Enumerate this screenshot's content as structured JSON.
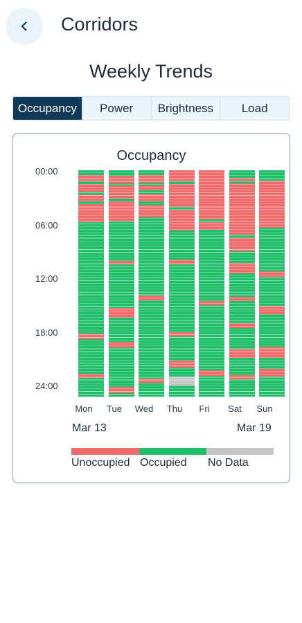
{
  "header": {
    "title": "Corridors",
    "back_icon": "chevron-left-icon"
  },
  "section": {
    "title": "Weekly Trends"
  },
  "tabs": [
    {
      "label": "Occupancy",
      "active": true
    },
    {
      "label": "Power",
      "active": false
    },
    {
      "label": "Brightness",
      "active": false
    },
    {
      "label": "Load",
      "active": false
    }
  ],
  "colors": {
    "unoccupied": "#f06a6a",
    "occupied": "#1fbf6a",
    "no_data": "#c4c4c4",
    "accent": "#123a58"
  },
  "chart_data": {
    "type": "heatmap",
    "title": "Occupancy",
    "x": [
      "Mon",
      "Tue",
      "Wed",
      "Thu",
      "Fri",
      "Sat",
      "Sun"
    ],
    "y_ticks": [
      "00:00",
      "06:00",
      "12:00",
      "18:00",
      "24:00"
    ],
    "y_range_hours": [
      0,
      24
    ],
    "start_date": "Mar 13",
    "end_date": "Mar 19",
    "legend": [
      "Unoccupied",
      "Occupied",
      "No Data"
    ],
    "categories": [
      "unoccupied",
      "occupied",
      "no_data"
    ],
    "series": [
      {
        "day": "Mon",
        "segments": [
          {
            "start": 0,
            "end": 0.5,
            "state": "occupied"
          },
          {
            "start": 0.5,
            "end": 1.2,
            "state": "unoccupied"
          },
          {
            "start": 1.2,
            "end": 1.5,
            "state": "occupied"
          },
          {
            "start": 1.5,
            "end": 2.3,
            "state": "unoccupied"
          },
          {
            "start": 2.3,
            "end": 2.6,
            "state": "occupied"
          },
          {
            "start": 2.6,
            "end": 3.3,
            "state": "unoccupied"
          },
          {
            "start": 3.3,
            "end": 3.6,
            "state": "occupied"
          },
          {
            "start": 3.6,
            "end": 5.5,
            "state": "unoccupied"
          },
          {
            "start": 5.5,
            "end": 17.3,
            "state": "occupied"
          },
          {
            "start": 17.3,
            "end": 17.9,
            "state": "unoccupied"
          },
          {
            "start": 17.9,
            "end": 21.6,
            "state": "occupied"
          },
          {
            "start": 21.6,
            "end": 22.0,
            "state": "unoccupied"
          },
          {
            "start": 22.0,
            "end": 24,
            "state": "occupied"
          }
        ]
      },
      {
        "day": "Tue",
        "segments": [
          {
            "start": 0,
            "end": 0.6,
            "state": "occupied"
          },
          {
            "start": 0.6,
            "end": 1.4,
            "state": "unoccupied"
          },
          {
            "start": 1.4,
            "end": 1.6,
            "state": "occupied"
          },
          {
            "start": 1.6,
            "end": 3.0,
            "state": "unoccupied"
          },
          {
            "start": 3.0,
            "end": 3.3,
            "state": "occupied"
          },
          {
            "start": 3.3,
            "end": 5.4,
            "state": "unoccupied"
          },
          {
            "start": 5.4,
            "end": 9.6,
            "state": "occupied"
          },
          {
            "start": 9.6,
            "end": 10.0,
            "state": "unoccupied"
          },
          {
            "start": 10.0,
            "end": 14.6,
            "state": "occupied"
          },
          {
            "start": 14.6,
            "end": 15.6,
            "state": "unoccupied"
          },
          {
            "start": 15.6,
            "end": 18.2,
            "state": "occupied"
          },
          {
            "start": 18.2,
            "end": 18.8,
            "state": "unoccupied"
          },
          {
            "start": 18.8,
            "end": 23.0,
            "state": "occupied"
          },
          {
            "start": 23.0,
            "end": 23.6,
            "state": "unoccupied"
          },
          {
            "start": 23.6,
            "end": 24,
            "state": "occupied"
          }
        ]
      },
      {
        "day": "Wed",
        "segments": [
          {
            "start": 0,
            "end": 0.5,
            "state": "occupied"
          },
          {
            "start": 0.5,
            "end": 1.3,
            "state": "unoccupied"
          },
          {
            "start": 1.3,
            "end": 1.6,
            "state": "occupied"
          },
          {
            "start": 1.6,
            "end": 2.1,
            "state": "unoccupied"
          },
          {
            "start": 2.1,
            "end": 2.5,
            "state": "occupied"
          },
          {
            "start": 2.5,
            "end": 3.3,
            "state": "unoccupied"
          },
          {
            "start": 3.3,
            "end": 3.7,
            "state": "occupied"
          },
          {
            "start": 3.7,
            "end": 5.0,
            "state": "unoccupied"
          },
          {
            "start": 5.0,
            "end": 13.3,
            "state": "occupied"
          },
          {
            "start": 13.3,
            "end": 13.8,
            "state": "unoccupied"
          },
          {
            "start": 13.8,
            "end": 22.1,
            "state": "occupied"
          },
          {
            "start": 22.1,
            "end": 22.5,
            "state": "unoccupied"
          },
          {
            "start": 22.5,
            "end": 24,
            "state": "occupied"
          }
        ]
      },
      {
        "day": "Thu",
        "segments": [
          {
            "start": 0,
            "end": 1.2,
            "state": "unoccupied"
          },
          {
            "start": 1.2,
            "end": 1.5,
            "state": "occupied"
          },
          {
            "start": 1.5,
            "end": 3.9,
            "state": "unoccupied"
          },
          {
            "start": 3.9,
            "end": 4.2,
            "state": "occupied"
          },
          {
            "start": 4.2,
            "end": 6.4,
            "state": "unoccupied"
          },
          {
            "start": 6.4,
            "end": 9.5,
            "state": "occupied"
          },
          {
            "start": 9.5,
            "end": 10.0,
            "state": "unoccupied"
          },
          {
            "start": 10.0,
            "end": 17.2,
            "state": "occupied"
          },
          {
            "start": 17.2,
            "end": 17.6,
            "state": "unoccupied"
          },
          {
            "start": 17.6,
            "end": 20.2,
            "state": "occupied"
          },
          {
            "start": 20.2,
            "end": 20.9,
            "state": "unoccupied"
          },
          {
            "start": 20.9,
            "end": 21.9,
            "state": "occupied"
          },
          {
            "start": 21.9,
            "end": 22.8,
            "state": "no_data"
          },
          {
            "start": 22.8,
            "end": 24,
            "state": "occupied"
          }
        ]
      },
      {
        "day": "Fri",
        "segments": [
          {
            "start": 0,
            "end": 5.2,
            "state": "unoccupied"
          },
          {
            "start": 5.2,
            "end": 5.5,
            "state": "occupied"
          },
          {
            "start": 5.5,
            "end": 6.3,
            "state": "unoccupied"
          },
          {
            "start": 6.3,
            "end": 13.9,
            "state": "occupied"
          },
          {
            "start": 13.9,
            "end": 14.3,
            "state": "unoccupied"
          },
          {
            "start": 14.3,
            "end": 21.2,
            "state": "occupied"
          },
          {
            "start": 21.2,
            "end": 21.8,
            "state": "unoccupied"
          },
          {
            "start": 21.8,
            "end": 24,
            "state": "occupied"
          }
        ]
      },
      {
        "day": "Sat",
        "segments": [
          {
            "start": 0,
            "end": 0.8,
            "state": "occupied"
          },
          {
            "start": 0.8,
            "end": 1.1,
            "state": "unoccupied"
          },
          {
            "start": 1.1,
            "end": 1.4,
            "state": "occupied"
          },
          {
            "start": 1.4,
            "end": 6.8,
            "state": "unoccupied"
          },
          {
            "start": 6.8,
            "end": 7.2,
            "state": "occupied"
          },
          {
            "start": 7.2,
            "end": 8.6,
            "state": "unoccupied"
          },
          {
            "start": 8.6,
            "end": 9.8,
            "state": "occupied"
          },
          {
            "start": 9.8,
            "end": 10.9,
            "state": "unoccupied"
          },
          {
            "start": 10.9,
            "end": 13.4,
            "state": "occupied"
          },
          {
            "start": 13.4,
            "end": 13.9,
            "state": "unoccupied"
          },
          {
            "start": 13.9,
            "end": 16.2,
            "state": "occupied"
          },
          {
            "start": 16.2,
            "end": 16.7,
            "state": "unoccupied"
          },
          {
            "start": 16.7,
            "end": 18.9,
            "state": "occupied"
          },
          {
            "start": 18.9,
            "end": 19.9,
            "state": "unoccupied"
          },
          {
            "start": 19.9,
            "end": 21.7,
            "state": "occupied"
          },
          {
            "start": 21.7,
            "end": 22.2,
            "state": "unoccupied"
          },
          {
            "start": 22.2,
            "end": 24,
            "state": "occupied"
          }
        ]
      },
      {
        "day": "Sun",
        "segments": [
          {
            "start": 0,
            "end": 1.1,
            "state": "occupied"
          },
          {
            "start": 1.1,
            "end": 6.1,
            "state": "unoccupied"
          },
          {
            "start": 6.1,
            "end": 10.7,
            "state": "occupied"
          },
          {
            "start": 10.7,
            "end": 11.3,
            "state": "unoccupied"
          },
          {
            "start": 11.3,
            "end": 14.4,
            "state": "occupied"
          },
          {
            "start": 14.4,
            "end": 15.3,
            "state": "unoccupied"
          },
          {
            "start": 15.3,
            "end": 18.7,
            "state": "occupied"
          },
          {
            "start": 18.7,
            "end": 19.9,
            "state": "unoccupied"
          },
          {
            "start": 19.9,
            "end": 21.1,
            "state": "occupied"
          },
          {
            "start": 21.1,
            "end": 21.9,
            "state": "unoccupied"
          },
          {
            "start": 21.9,
            "end": 24,
            "state": "occupied"
          }
        ]
      }
    ]
  }
}
